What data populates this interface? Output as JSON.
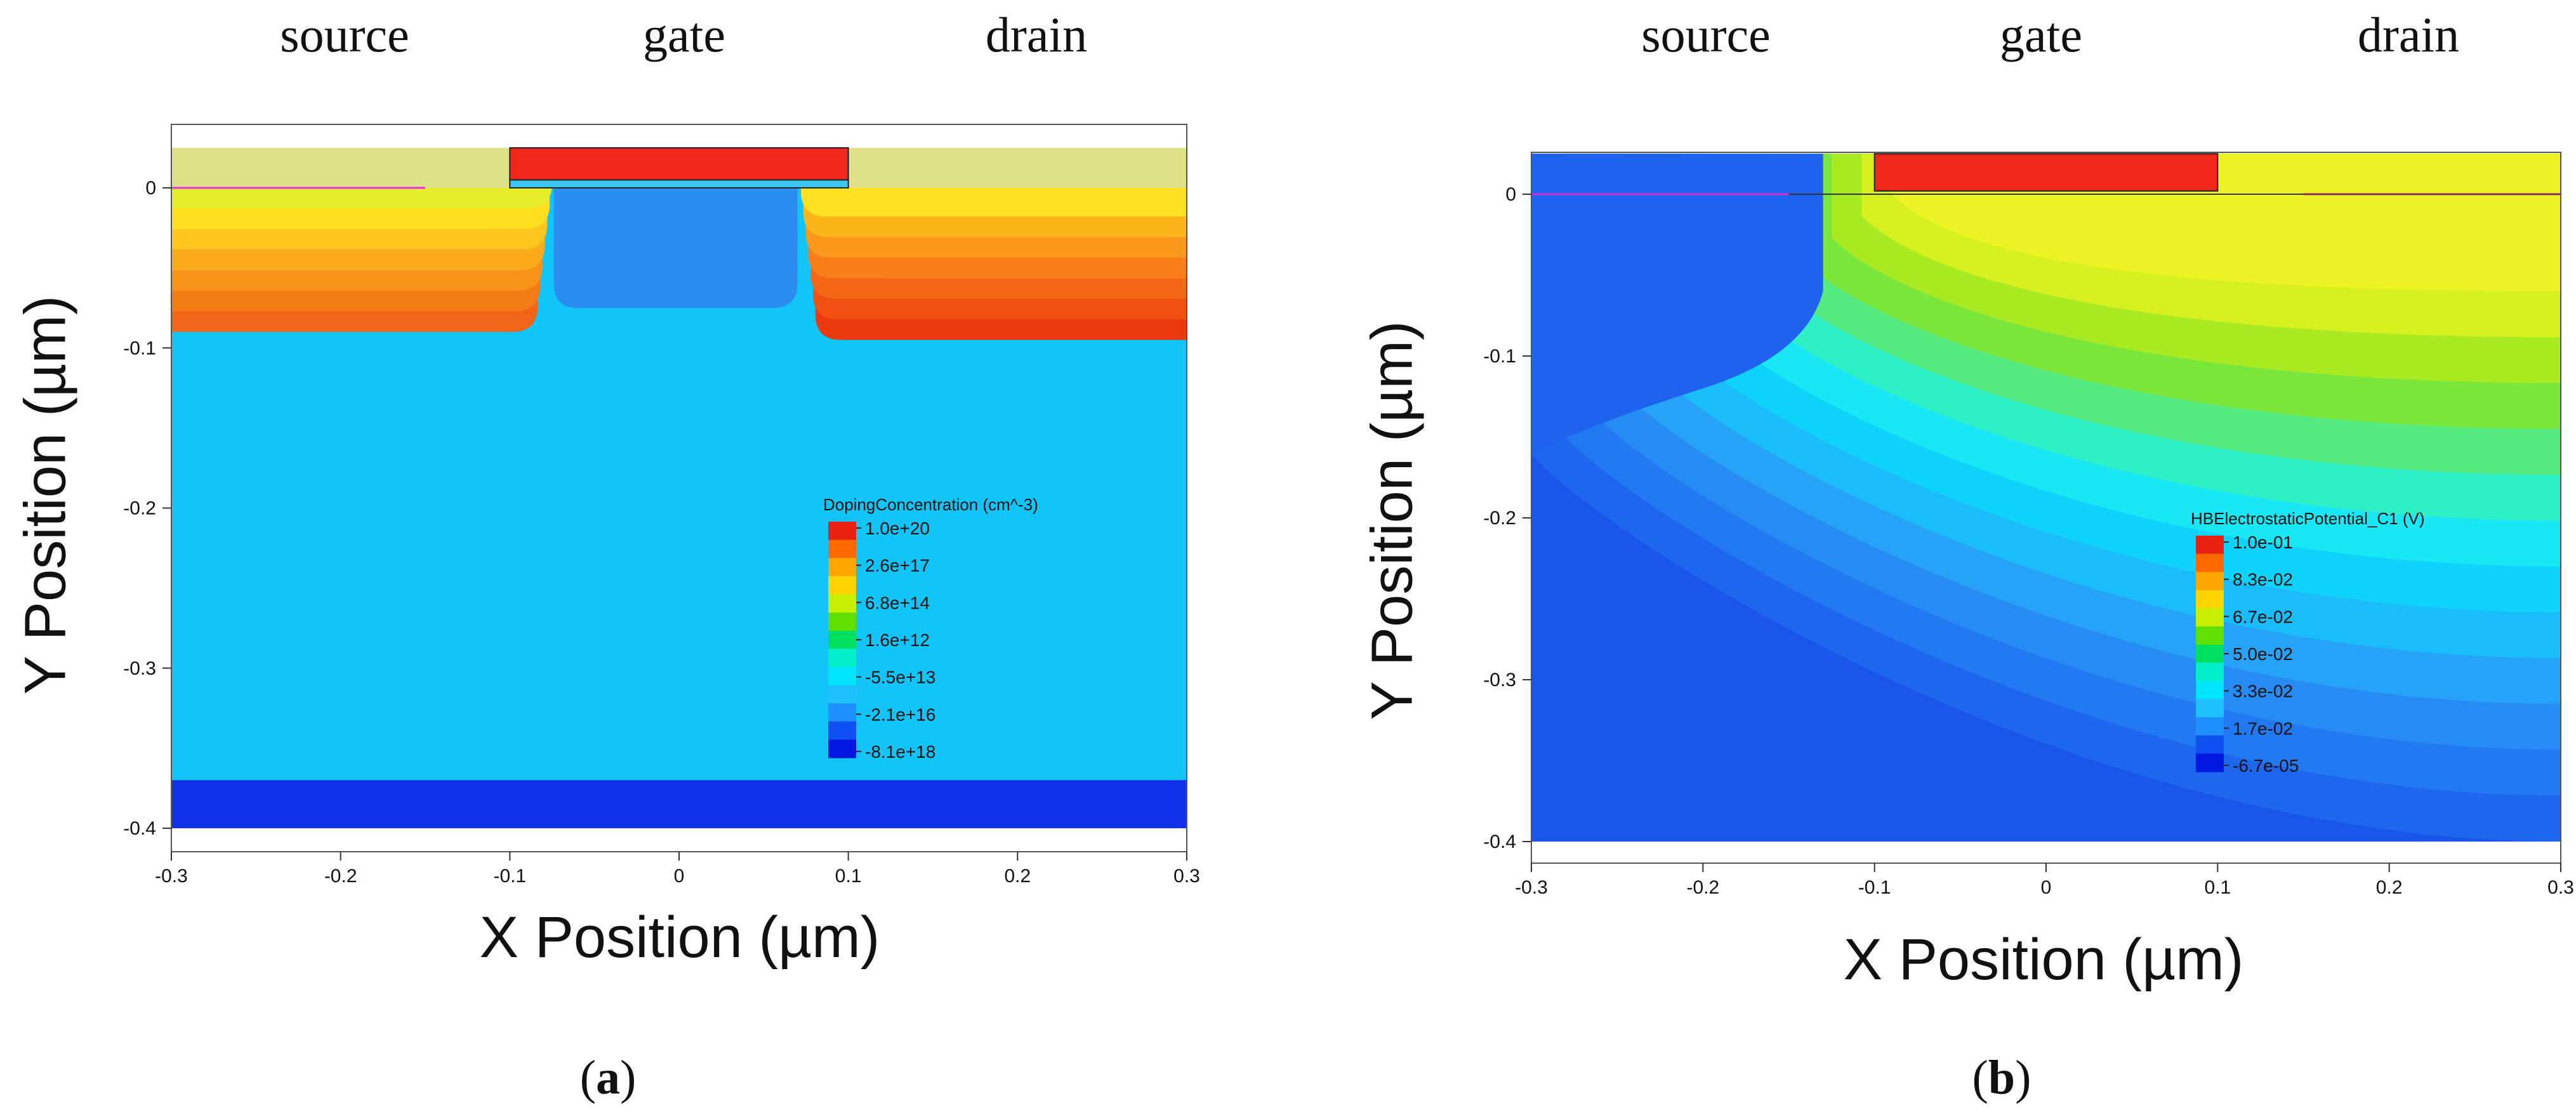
{
  "chart_data": [
    {
      "id": "a",
      "type": "heatmap",
      "caption": "a",
      "region_labels": [
        "source",
        "gate",
        "drain"
      ],
      "xlabel": "X Position  (µm)",
      "ylabel": "Y Position  (µm)",
      "xlim": [
        -0.3,
        0.3
      ],
      "ylim": [
        -0.4,
        0.025
      ],
      "x_ticks": [
        "-0.3",
        "-0.2",
        "-0.1",
        "0",
        "0.1",
        "0.2",
        "0.3"
      ],
      "y_ticks": [
        "0",
        "-0.1",
        "-0.2",
        "-0.3",
        "-0.4"
      ],
      "legend": {
        "title": "DopingConcentration (cm^-3)",
        "labels": [
          "1.0e+20",
          "2.6e+17",
          "6.8e+14",
          "1.6e+12",
          "-5.5e+13",
          "-2.1e+16",
          "-8.1e+18"
        ],
        "colors": [
          "#e8200f",
          "#ff6a00",
          "#ffa500",
          "#ffd400",
          "#c9ef00",
          "#5fe000",
          "#00e060",
          "#00eec8",
          "#00e5ff",
          "#20c0ff",
          "#1e90ff",
          "#1050f0",
          "#0018e0"
        ]
      },
      "colors": {
        "oxide": "#dee08a",
        "gate": "#f0281c",
        "gate_oxide": "#3cc8f0",
        "substrate": "#12c4f8",
        "channel": "#2b8df0",
        "bottom": "#1030e8",
        "source_bands": [
          "#f06418",
          "#f37b16",
          "#f8931a",
          "#fbab1c",
          "#fdc51d",
          "#ffe020",
          "#e6ed2a"
        ],
        "drain_bands": [
          "#ec3a10",
          "#f05012",
          "#f46716",
          "#f77e18",
          "#fa981c",
          "#fcb61c",
          "#ffe022"
        ]
      }
    },
    {
      "id": "b",
      "type": "heatmap",
      "caption": "b",
      "region_labels": [
        "source",
        "gate",
        "drain"
      ],
      "xlabel": "X Position  (µm)",
      "ylabel": "Y Position  (µm)",
      "xlim": [
        -0.3,
        0.3
      ],
      "ylim": [
        -0.4,
        0.025
      ],
      "x_ticks": [
        "-0.3",
        "-0.2",
        "-0.1",
        "0",
        "0.1",
        "0.2",
        "0.3"
      ],
      "y_ticks": [
        "0",
        "-0.1",
        "-0.2",
        "-0.3",
        "-0.4"
      ],
      "legend": {
        "title": "HBElectrostaticPotential_C1 (V)",
        "labels": [
          "1.0e-01",
          "8.3e-02",
          "6.7e-02",
          "5.0e-02",
          "3.3e-02",
          "1.7e-02",
          "-6.7e-05"
        ],
        "colors": [
          "#e8200f",
          "#ff6a00",
          "#ffa500",
          "#ffd400",
          "#c9ef00",
          "#5fe000",
          "#00e060",
          "#00eec8",
          "#00e5ff",
          "#20c0ff",
          "#1e90ff",
          "#1050f0",
          "#0018e0"
        ]
      },
      "colors": {
        "background": "#1a55ea",
        "gate": "#f0281c",
        "contours": [
          "#1e66ee",
          "#2379f1",
          "#268cf3",
          "#26a3f6",
          "#1abcf9",
          "#10d3fb",
          "#19e7f3",
          "#2ff0c4",
          "#55ea80",
          "#7be63c",
          "#aaea22",
          "#d6f020",
          "#eef326"
        ]
      }
    }
  ]
}
